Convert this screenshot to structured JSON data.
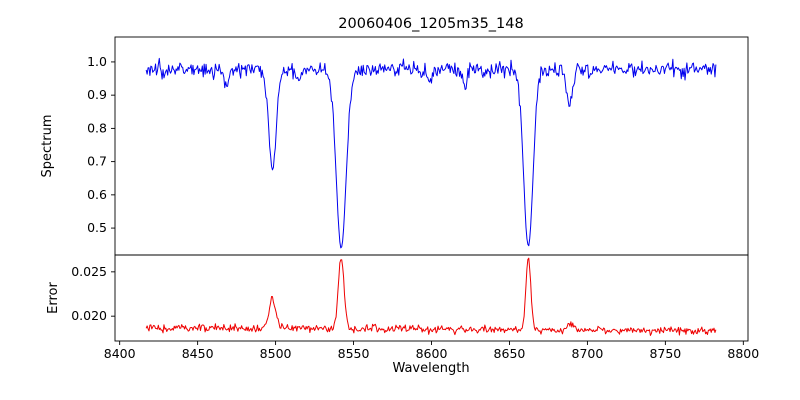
{
  "chart_data": {
    "type": "line",
    "title": "20060406_1205m35_148",
    "xlabel": "Wavelength",
    "xlim": [
      8397,
      8803
    ],
    "x_ticks": [
      8400,
      8450,
      8500,
      8550,
      8600,
      8650,
      8700,
      8750,
      8800
    ],
    "x_data_range": [
      8417,
      8783
    ],
    "sampling_step": 0.6,
    "noise_seed": 7,
    "grid": false,
    "legend": "none",
    "panels": [
      {
        "name": "spectrum",
        "ylabel": "Spectrum",
        "ylim": [
          0.419,
          1.075
        ],
        "y_ticks": [
          0.5,
          0.6,
          0.7,
          0.8,
          0.9,
          1.0
        ],
        "y_tick_decimals": 1,
        "color": "#0000ee",
        "continuum": 0.978,
        "noise_sigma": 0.011,
        "absorption_lines": [
          {
            "center": 8468.4,
            "depth": 0.045,
            "sigma": 1.6
          },
          {
            "center": 8498.0,
            "depth": 0.31,
            "sigma": 2.4
          },
          {
            "center": 8514.2,
            "depth": 0.04,
            "sigma": 1.5
          },
          {
            "center": 8542.1,
            "depth": 0.55,
            "sigma": 3.2
          },
          {
            "center": 8598.8,
            "depth": 0.04,
            "sigma": 1.5
          },
          {
            "center": 8621.6,
            "depth": 0.05,
            "sigma": 1.5
          },
          {
            "center": 8662.1,
            "depth": 0.545,
            "sigma": 3.0
          },
          {
            "center": 8688.6,
            "depth": 0.105,
            "sigma": 2.0
          }
        ]
      },
      {
        "name": "error",
        "ylabel": "Error",
        "ylim": [
          0.0172,
          0.0269
        ],
        "y_ticks": [
          0.02,
          0.025
        ],
        "y_tick_decimals": 3,
        "color": "#ee0000",
        "baseline_start": 0.0187,
        "baseline_slope_per_angstrom": -1e-06,
        "noise_sigma": 0.00022,
        "peaks": [
          {
            "center": 8498.0,
            "amplitude": 0.0037,
            "sigma": 1.8
          },
          {
            "center": 8542.1,
            "amplitude": 0.0081,
            "sigma": 1.8
          },
          {
            "center": 8662.1,
            "amplitude": 0.0079,
            "sigma": 1.6
          },
          {
            "center": 8688.6,
            "amplitude": 0.0009,
            "sigma": 2.0
          }
        ]
      }
    ]
  }
}
